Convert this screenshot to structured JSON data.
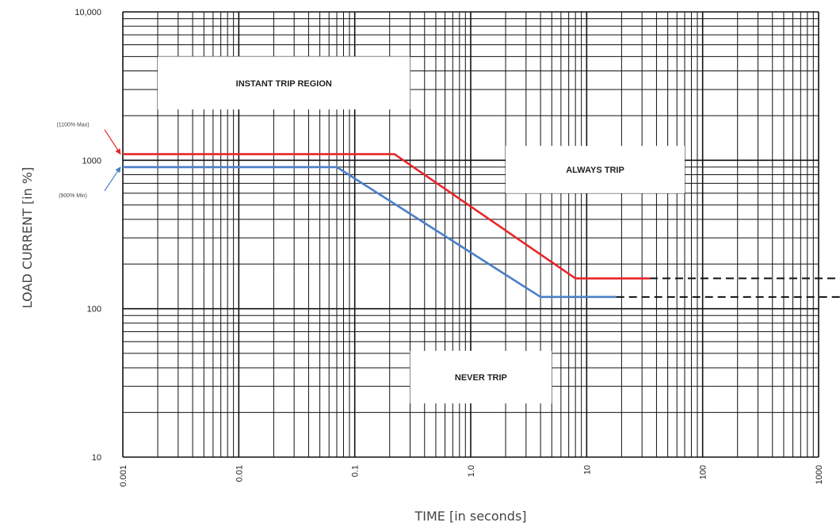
{
  "chart_data": {
    "type": "line",
    "title": "",
    "xlabel": "TIME [in seconds]",
    "ylabel": "LOAD CURRENT [in %]",
    "x_scale": "log",
    "y_scale": "log",
    "xlim": [
      0.001,
      1000
    ],
    "ylim": [
      10,
      10000
    ],
    "grid": true,
    "x_ticks": [
      {
        "value": 0.001,
        "label": "0.001"
      },
      {
        "value": 0.01,
        "label": "0.01"
      },
      {
        "value": 0.1,
        "label": "0.1"
      },
      {
        "value": 1,
        "label": "1.0"
      },
      {
        "value": 10,
        "label": "10"
      },
      {
        "value": 100,
        "label": "100"
      },
      {
        "value": 1000,
        "label": "1000"
      }
    ],
    "y_ticks": [
      {
        "value": 10,
        "label": "10"
      },
      {
        "value": 100,
        "label": "100"
      },
      {
        "value": 1000,
        "label": "1000"
      },
      {
        "value": 10000,
        "label": "10,000"
      }
    ],
    "series": [
      {
        "color": "#e8252a",
        "points": [
          [
            0.001,
            1100
          ],
          [
            0.22,
            1100
          ],
          [
            8,
            160
          ],
          [
            35,
            160
          ]
        ],
        "dashed_extension": {
          "from": 35,
          "to": 1000,
          "y": 160,
          "color": "#111111"
        }
      },
      {
        "color": "#4a7fc8",
        "points": [
          [
            0.001,
            900
          ],
          [
            0.07,
            900
          ],
          [
            4,
            120
          ],
          [
            18,
            120
          ]
        ],
        "dashed_extension": {
          "from": 18,
          "to": 1000,
          "y": 120,
          "color": "#111111"
        }
      }
    ],
    "annotations": [
      {
        "text": "(1100% Max)",
        "target_series": 0
      },
      {
        "text": "(900% Min)",
        "target_series": 1
      }
    ],
    "regions": [
      {
        "text": "INSTANT TRIP REGION",
        "x_range": [
          0.002,
          0.3
        ],
        "y_range": [
          2200,
          5000
        ]
      },
      {
        "text": "ALWAYS TRIP",
        "x_range": [
          2,
          70
        ],
        "y_range": [
          600,
          1250
        ]
      },
      {
        "text": "NEVER TRIP",
        "x_range": [
          0.3,
          5
        ],
        "y_range": [
          23,
          52
        ]
      }
    ]
  }
}
